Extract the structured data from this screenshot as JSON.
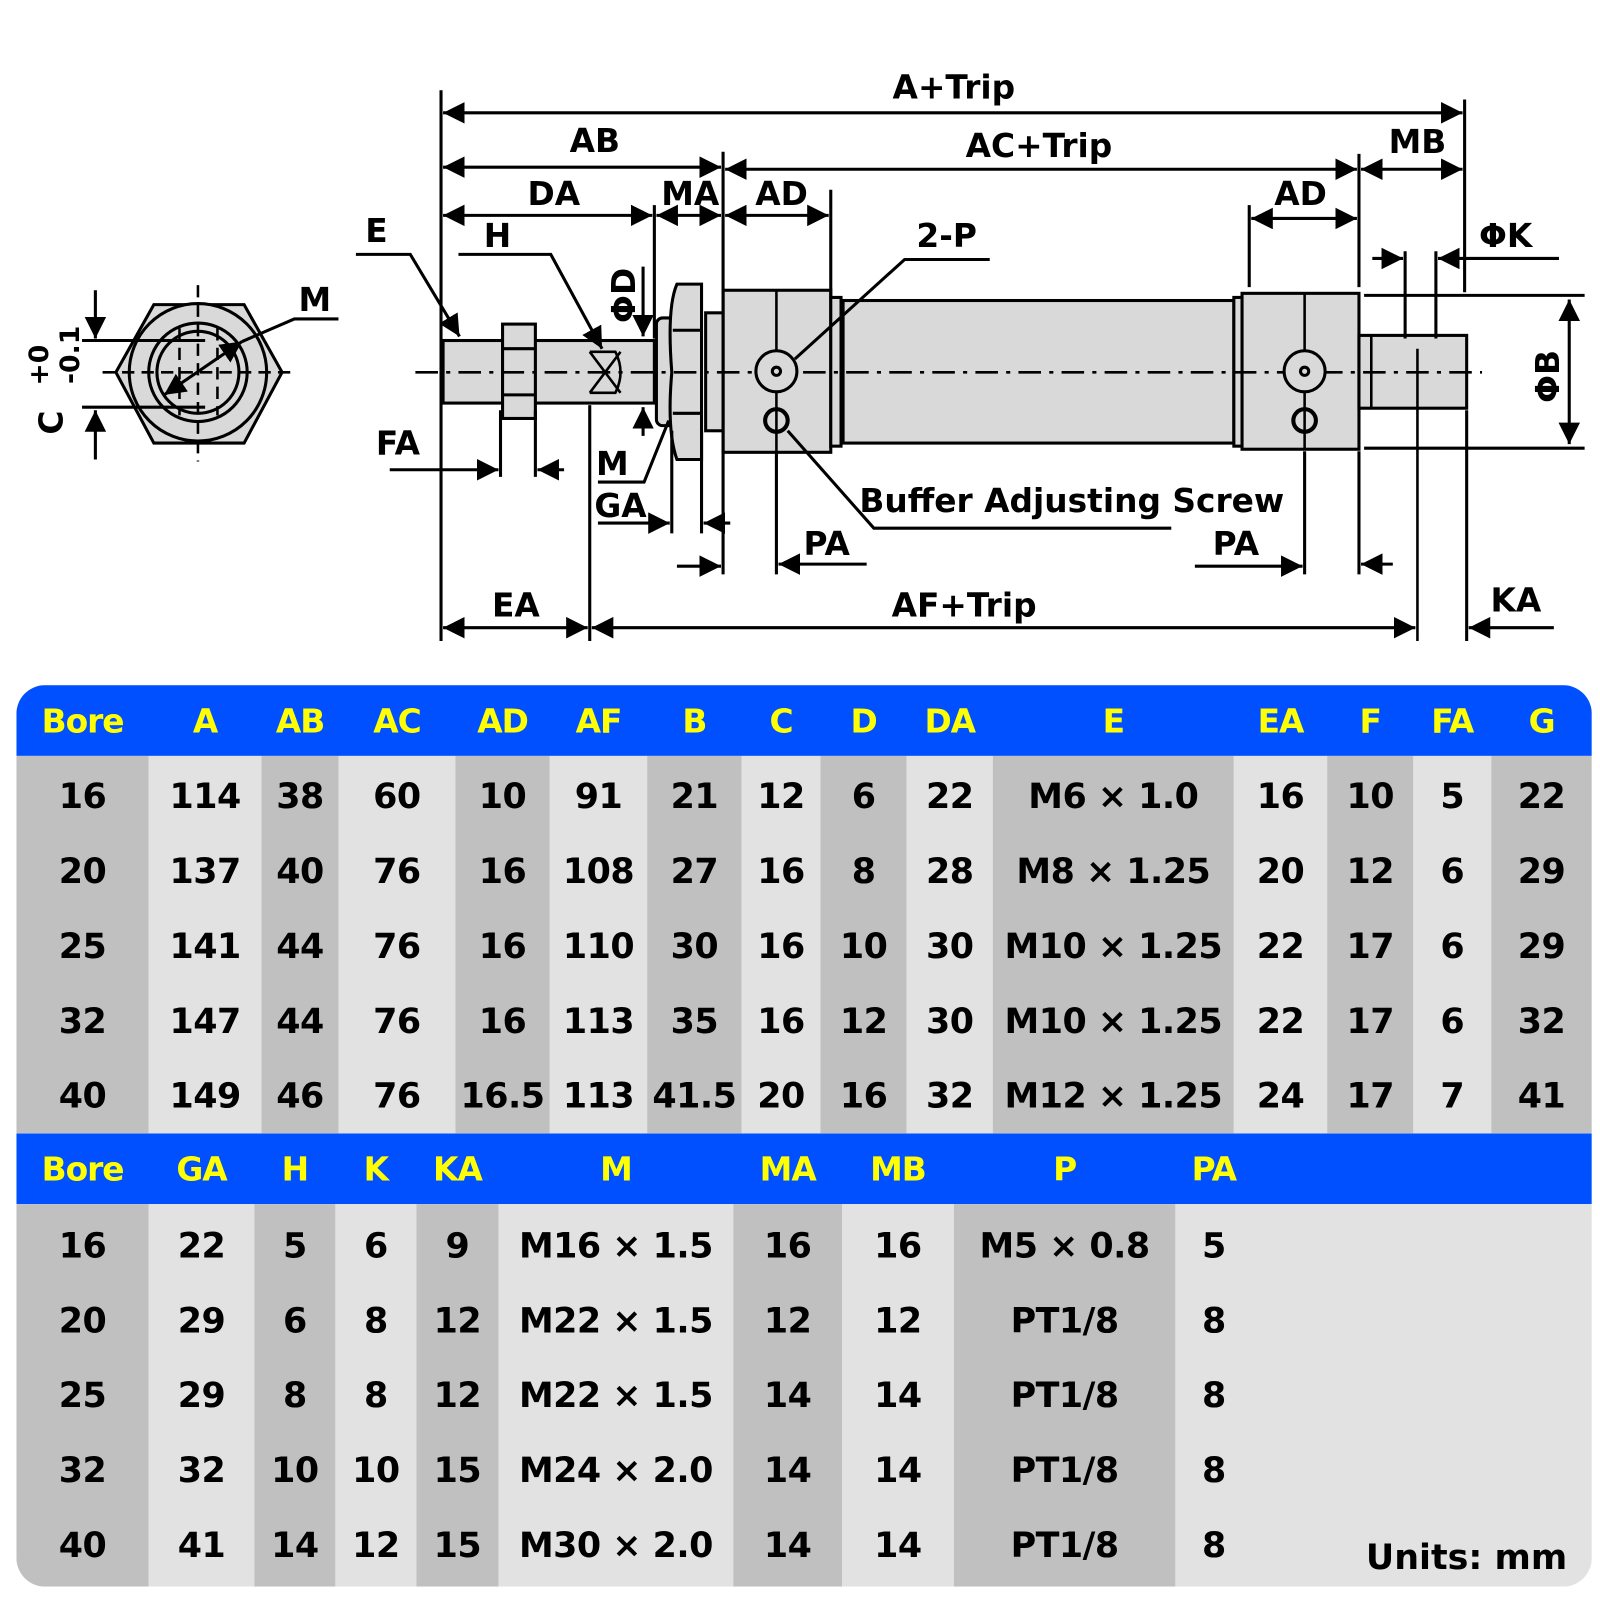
{
  "diagram": {
    "labels": {
      "a_trip": "A+Trip",
      "ab": "AB",
      "ac_trip": "AC+Trip",
      "mb": "MB",
      "da": "DA",
      "ma": "MA",
      "ad_left": "AD",
      "ad_right": "AD",
      "e": "E",
      "h": "H",
      "two_p": "2-P",
      "phi_k": "ΦK",
      "phi_d": "ΦD",
      "phi_b": "ΦB",
      "m_end": "M",
      "c": "C",
      "tol_plus": "+0",
      "tol_minus": "-0.1",
      "fa": "FA",
      "m": "M",
      "ga": "GA",
      "buffer": "Buffer Adjusting Screw",
      "pa_left": "PA",
      "pa_right": "PA",
      "ea": "EA",
      "af_trip": "AF+Trip",
      "ka": "KA"
    }
  },
  "colors": {
    "header_bg": "#0050ff",
    "header_text": "#ffff00",
    "col_dark": "#c0c0c0",
    "col_light": "#e2e2e2",
    "part_fill": "#d9d9d9"
  },
  "table1": {
    "columns": [
      {
        "header": "Bore",
        "values": [
          "16",
          "20",
          "25",
          "32",
          "40"
        ]
      },
      {
        "header": "A",
        "values": [
          "114",
          "137",
          "141",
          "147",
          "149"
        ]
      },
      {
        "header": "AB",
        "values": [
          "38",
          "40",
          "44",
          "44",
          "46"
        ]
      },
      {
        "header": "AC",
        "values": [
          "60",
          "76",
          "76",
          "76",
          "76"
        ]
      },
      {
        "header": "AD",
        "values": [
          "10",
          "16",
          "16",
          "16",
          "16.5"
        ]
      },
      {
        "header": "AF",
        "values": [
          "91",
          "108",
          "110",
          "113",
          "113"
        ]
      },
      {
        "header": "B",
        "values": [
          "21",
          "27",
          "30",
          "35",
          "41.5"
        ]
      },
      {
        "header": "C",
        "values": [
          "12",
          "16",
          "16",
          "16",
          "20"
        ]
      },
      {
        "header": "D",
        "values": [
          "6",
          "8",
          "10",
          "12",
          "16"
        ]
      },
      {
        "header": "DA",
        "values": [
          "22",
          "28",
          "30",
          "30",
          "32"
        ]
      },
      {
        "header": "E",
        "values": [
          "M6 × 1.0",
          "M8 × 1.25",
          "M10 × 1.25",
          "M10 × 1.25",
          "M12 × 1.25"
        ]
      },
      {
        "header": "EA",
        "values": [
          "16",
          "20",
          "22",
          "22",
          "24"
        ]
      },
      {
        "header": "F",
        "values": [
          "10",
          "12",
          "17",
          "17",
          "17"
        ]
      },
      {
        "header": "FA",
        "values": [
          "5",
          "6",
          "6",
          "6",
          "7"
        ]
      },
      {
        "header": "G",
        "values": [
          "22",
          "29",
          "29",
          "32",
          "41"
        ]
      }
    ]
  },
  "table2": {
    "columns": [
      {
        "header": "Bore",
        "values": [
          "16",
          "20",
          "25",
          "32",
          "40"
        ]
      },
      {
        "header": "GA",
        "values": [
          "22",
          "29",
          "29",
          "32",
          "41"
        ]
      },
      {
        "header": "H",
        "values": [
          "5",
          "6",
          "8",
          "10",
          "14"
        ]
      },
      {
        "header": "K",
        "values": [
          "6",
          "8",
          "8",
          "10",
          "12"
        ]
      },
      {
        "header": "KA",
        "values": [
          "9",
          "12",
          "12",
          "15",
          "15"
        ]
      },
      {
        "header": "M",
        "values": [
          "M16 × 1.5",
          "M22 × 1.5",
          "M22 × 1.5",
          "M24 × 2.0",
          "M30 × 2.0"
        ]
      },
      {
        "header": "MA",
        "values": [
          "16",
          "12",
          "14",
          "14",
          "14"
        ]
      },
      {
        "header": "MB",
        "values": [
          "16",
          "12",
          "14",
          "14",
          "14"
        ]
      },
      {
        "header": "P",
        "values": [
          "M5 × 0.8",
          "PT1/8",
          "PT1/8",
          "PT1/8",
          "PT1/8"
        ]
      },
      {
        "header": "PA",
        "values": [
          "5",
          "8",
          "8",
          "8",
          "8"
        ]
      }
    ],
    "units": "Units: mm"
  }
}
